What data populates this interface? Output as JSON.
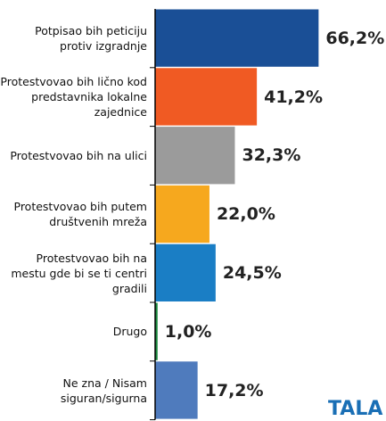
{
  "chart_data": {
    "type": "bar",
    "orientation": "horizontal",
    "categories": [
      "Potpisao bih peticiju protiv izgradnje",
      "Protestvovao bih lično kod predstavnika lokalne zajednice",
      "Protestvovao bih na ulici",
      "Protestvovao bih putem društvenih mreža",
      "Protestvovao bih na mestu gde bi se ti centri gradili",
      "Drugo",
      "Ne zna / Nisam siguran/sigurna"
    ],
    "values": [
      66.2,
      41.2,
      32.3,
      22.0,
      24.5,
      1.0,
      17.2
    ],
    "value_labels": [
      "66,2%",
      "41,2%",
      "32,3%",
      "22,0%",
      "24,5%",
      "1,0%",
      "17,2%"
    ],
    "colors": [
      "#1a4f96",
      "#f05a23",
      "#9b9b9b",
      "#f6a81e",
      "#1a7ec5",
      "#1b8a3e",
      "#4f7bbd"
    ],
    "watermark": "TALA"
  }
}
